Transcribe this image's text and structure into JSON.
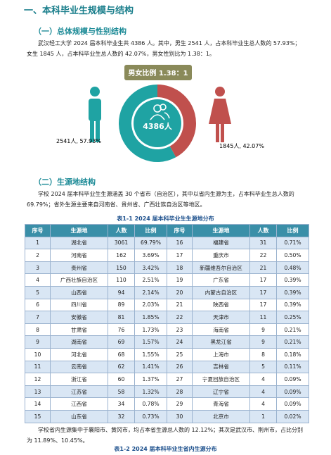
{
  "heading": "一、本科毕业生规模与结构",
  "section1": {
    "title": "（一）总体规模与性别结构",
    "paragraph": "武汉轻工大学 2024 届本科毕业生共 4386 人。其中，男生 2541 人，占本科毕业生总人数的 57.93%；女生 1845 人，占本科毕业生总人数的 42.07%，男女性别比为 1.38：1。"
  },
  "chart_data": {
    "type": "donut",
    "badge": "男女比例 1.38：1",
    "center_label": "4386人",
    "values": [
      2541,
      1845
    ],
    "value_labels": [
      "2541人, 57.93%",
      "1845人, 42.07%"
    ],
    "colors": [
      "#1fa3a3",
      "#c0504d"
    ]
  },
  "section2": {
    "title": "（二）生源地结构",
    "paragraph": "学校 2024 届本科毕业生生源涵盖 30 个省市（自治区），其中以省内生源为主，占本科毕业生总人数的 69.79%；省外生源主要来自河南省、贵州省、广西壮族自治区等地区。",
    "table_caption": "表1-1   2024 届本科毕业生生源地分布",
    "table": {
      "header": [
        "序号",
        "生源地",
        "人数",
        "比例",
        "序号",
        "生源地",
        "人数",
        "比例"
      ],
      "rows": [
        [
          "1",
          "湖北省",
          "3061",
          "69.79%",
          "16",
          "福建省",
          "31",
          "0.71%"
        ],
        [
          "2",
          "河南省",
          "162",
          "3.69%",
          "17",
          "重庆市",
          "22",
          "0.50%"
        ],
        [
          "3",
          "贵州省",
          "150",
          "3.42%",
          "18",
          "新疆维吾尔自治区",
          "21",
          "0.48%"
        ],
        [
          "4",
          "广西壮族自治区",
          "110",
          "2.51%",
          "19",
          "广东省",
          "17",
          "0.39%"
        ],
        [
          "5",
          "山西省",
          "94",
          "2.14%",
          "20",
          "内蒙古自治区",
          "17",
          "0.39%"
        ],
        [
          "6",
          "四川省",
          "89",
          "2.03%",
          "21",
          "陕西省",
          "17",
          "0.39%"
        ],
        [
          "7",
          "安徽省",
          "81",
          "1.85%",
          "22",
          "天津市",
          "11",
          "0.25%"
        ],
        [
          "8",
          "甘肃省",
          "76",
          "1.73%",
          "23",
          "海南省",
          "9",
          "0.21%"
        ],
        [
          "9",
          "湖南省",
          "69",
          "1.57%",
          "24",
          "黑龙江省",
          "9",
          "0.21%"
        ],
        [
          "10",
          "河北省",
          "68",
          "1.55%",
          "25",
          "上海市",
          "8",
          "0.18%"
        ],
        [
          "11",
          "云南省",
          "62",
          "1.41%",
          "26",
          "吉林省",
          "5",
          "0.11%"
        ],
        [
          "12",
          "浙江省",
          "60",
          "1.37%",
          "27",
          "宁夏回族自治区",
          "4",
          "0.09%"
        ],
        [
          "13",
          "江苏省",
          "58",
          "1.32%",
          "28",
          "辽宁省",
          "4",
          "0.09%"
        ],
        [
          "14",
          "江西省",
          "34",
          "0.78%",
          "29",
          "青海省",
          "4",
          "0.09%"
        ],
        [
          "15",
          "山东省",
          "32",
          "0.73%",
          "30",
          "北京市",
          "1",
          "0.02%"
        ]
      ]
    },
    "paragraph2": "学校省内生源集中于襄阳市、黄冈市，均占本省生源总人数的 12.12%；其次是武汉市、荆州市，占比分别为 11.89%、10.45%。",
    "table2_caption": "表1-2   2024 届本科毕业生省内生源分布"
  }
}
